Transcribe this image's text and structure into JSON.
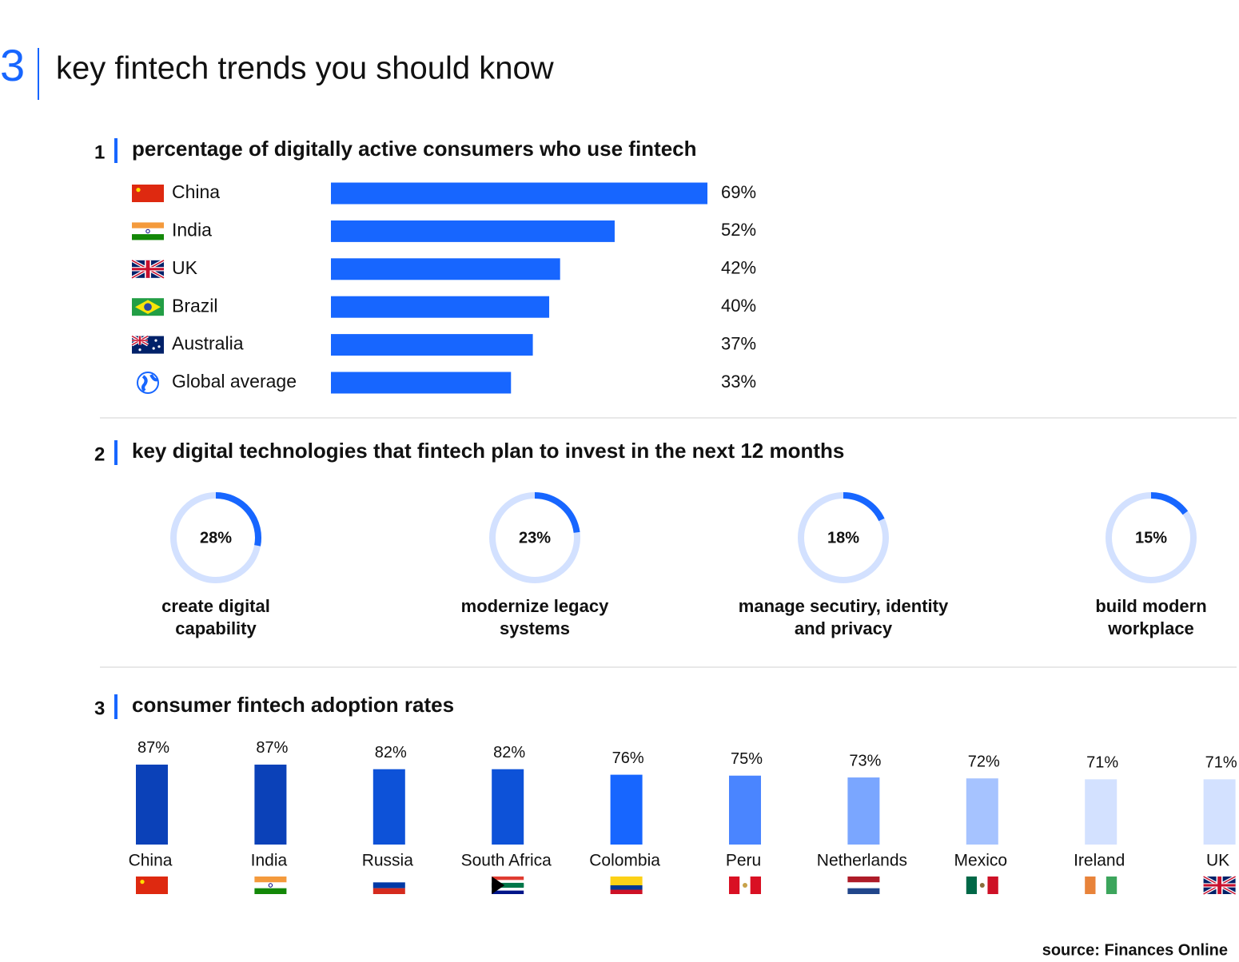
{
  "header": {
    "number": "3",
    "title": "key fintech trends you should know"
  },
  "chart_data": [
    {
      "type": "bar",
      "number": "1",
      "title": "percentage of digitally active consumers who use fintech",
      "categories": [
        "China",
        "India",
        "UK",
        "Brazil",
        "Australia",
        "Global average"
      ],
      "values": [
        69,
        52,
        42,
        40,
        37,
        33
      ],
      "value_labels": [
        "69%",
        "52%",
        "42%",
        "40%",
        "37%",
        "33%"
      ],
      "color": "#1766ff"
    },
    {
      "type": "donut",
      "number": "2",
      "title": "key digital technologies that fintech plan to invest in the next 12 months",
      "categories": [
        "create digital capability",
        "modernize legacy systems",
        "manage secutiry, identity and privacy",
        "build modern workplace"
      ],
      "values": [
        28,
        23,
        18,
        15
      ],
      "value_labels": [
        "28%",
        "23%",
        "18%",
        "15%"
      ],
      "color": "#1766ff",
      "track_color": "#d3e1ff"
    },
    {
      "type": "column",
      "number": "3",
      "title": "consumer fintech adoption rates",
      "categories": [
        "China",
        "India",
        "Russia",
        "South Africa",
        "Colombia",
        "Peru",
        "Netherlands",
        "Mexico",
        "Ireland",
        "UK"
      ],
      "values": [
        87,
        87,
        82,
        82,
        76,
        75,
        73,
        72,
        71,
        71
      ],
      "value_labels": [
        "87%",
        "87%",
        "82%",
        "82%",
        "76%",
        "75%",
        "73%",
        "72%",
        "71%",
        "71%"
      ],
      "colors": [
        "#0b41b8",
        "#0b41b8",
        "#0d52d8",
        "#0d52d8",
        "#1766ff",
        "#4a85ff",
        "#7aa6ff",
        "#a6c3ff",
        "#d3e1ff",
        "#d3e1ff"
      ]
    }
  ],
  "source": "source: Finances Online"
}
